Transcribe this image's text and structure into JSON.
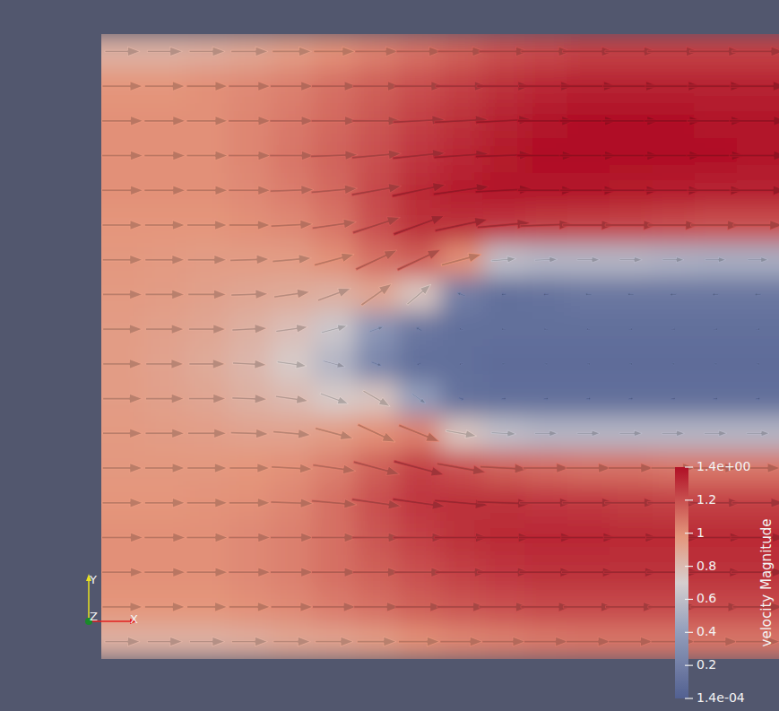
{
  "chart_data": {
    "type": "vector_field",
    "colorbar": {
      "title": "velocity Magnitude",
      "range": [
        0.00014,
        1.4
      ],
      "ticks": [
        {
          "value": 1.4,
          "label": "1.4e+00"
        },
        1.2,
        1,
        0.8,
        0.6,
        0.4,
        0.2,
        {
          "value": 0.00014,
          "label": "1.4e-04"
        }
      ]
    },
    "field": {
      "magnitude": [
        [
          0.85,
          0.85,
          0.87,
          0.9,
          0.95,
          1.0,
          1.05,
          1.1,
          1.15,
          1.2,
          1.22,
          1.25,
          1.25,
          1.25,
          1.25,
          1.25
        ],
        [
          0.98,
          0.98,
          1.0,
          1.02,
          1.05,
          1.1,
          1.15,
          1.2,
          1.25,
          1.3,
          1.33,
          1.35,
          1.35,
          1.35,
          1.35,
          1.35
        ],
        [
          1.0,
          1.0,
          1.0,
          1.03,
          1.07,
          1.12,
          1.18,
          1.25,
          1.3,
          1.35,
          1.38,
          1.4,
          1.4,
          1.4,
          1.38,
          1.38
        ],
        [
          1.0,
          1.0,
          1.0,
          1.03,
          1.08,
          1.14,
          1.2,
          1.28,
          1.33,
          1.37,
          1.4,
          1.4,
          1.4,
          1.4,
          1.4,
          1.38
        ],
        [
          1.0,
          1.0,
          1.0,
          1.02,
          1.06,
          1.12,
          1.22,
          1.32,
          1.36,
          1.38,
          1.38,
          1.38,
          1.37,
          1.36,
          1.35,
          1.35
        ],
        [
          0.98,
          0.98,
          0.98,
          1.0,
          1.02,
          1.08,
          1.2,
          1.3,
          1.3,
          1.28,
          1.26,
          1.25,
          1.24,
          1.22,
          1.2,
          1.2
        ],
        [
          0.97,
          0.96,
          0.95,
          0.95,
          0.95,
          1.0,
          1.1,
          1.15,
          1.0,
          0.6,
          0.55,
          0.55,
          0.55,
          0.52,
          0.5,
          0.5
        ],
        [
          0.96,
          0.95,
          0.93,
          0.9,
          0.88,
          0.85,
          0.9,
          0.75,
          0.2,
          0.1,
          0.12,
          0.15,
          0.15,
          0.15,
          0.15,
          0.15
        ],
        [
          0.95,
          0.93,
          0.9,
          0.85,
          0.78,
          0.65,
          0.35,
          0.15,
          0.1,
          0.1,
          0.1,
          0.1,
          0.1,
          0.1,
          0.1,
          0.1
        ],
        [
          0.95,
          0.92,
          0.88,
          0.82,
          0.72,
          0.55,
          0.25,
          0.1,
          0.1,
          0.08,
          0.08,
          0.08,
          0.08,
          0.08,
          0.08,
          0.08
        ],
        [
          0.95,
          0.93,
          0.9,
          0.85,
          0.8,
          0.72,
          0.75,
          0.4,
          0.12,
          0.1,
          0.1,
          0.1,
          0.1,
          0.1,
          0.1,
          0.1
        ],
        [
          0.96,
          0.95,
          0.94,
          0.92,
          0.92,
          0.95,
          1.0,
          1.05,
          0.75,
          0.6,
          0.55,
          0.55,
          0.55,
          0.55,
          0.55,
          0.55
        ],
        [
          0.97,
          0.97,
          0.97,
          0.98,
          1.0,
          1.05,
          1.15,
          1.25,
          1.2,
          1.15,
          1.12,
          1.1,
          1.1,
          1.08,
          1.08,
          1.08
        ],
        [
          0.98,
          0.98,
          0.99,
          1.0,
          1.03,
          1.1,
          1.2,
          1.28,
          1.3,
          1.3,
          1.28,
          1.27,
          1.26,
          1.25,
          1.25,
          1.25
        ],
        [
          1.0,
          1.0,
          1.0,
          1.02,
          1.05,
          1.1,
          1.18,
          1.25,
          1.3,
          1.32,
          1.33,
          1.33,
          1.32,
          1.32,
          1.32,
          1.32
        ],
        [
          1.0,
          1.0,
          1.0,
          1.02,
          1.05,
          1.1,
          1.15,
          1.2,
          1.25,
          1.28,
          1.3,
          1.3,
          1.3,
          1.3,
          1.3,
          1.3
        ],
        [
          0.98,
          0.98,
          0.98,
          1.0,
          1.02,
          1.06,
          1.1,
          1.15,
          1.18,
          1.2,
          1.22,
          1.22,
          1.22,
          1.22,
          1.22,
          1.22
        ],
        [
          0.85,
          0.85,
          0.85,
          0.87,
          0.9,
          0.92,
          0.95,
          1.0,
          1.03,
          1.05,
          1.07,
          1.08,
          1.08,
          1.08,
          1.08,
          1.08
        ]
      ],
      "angle": [
        [
          0,
          0,
          0,
          0,
          0,
          0,
          0,
          0,
          0,
          0,
          0,
          0,
          0,
          0,
          0,
          0
        ],
        [
          0,
          0,
          0,
          0,
          0,
          0,
          0,
          0,
          0,
          0,
          0,
          0,
          0,
          0,
          0,
          0
        ],
        [
          0,
          0,
          0,
          0,
          0,
          0,
          0,
          3,
          3,
          3,
          0,
          0,
          0,
          0,
          0,
          0
        ],
        [
          0,
          0,
          0,
          0,
          0,
          2,
          5,
          6,
          4,
          2,
          0,
          0,
          0,
          0,
          0,
          0
        ],
        [
          0,
          0,
          0,
          0,
          2,
          5,
          10,
          12,
          8,
          3,
          0,
          0,
          0,
          0,
          0,
          0
        ],
        [
          0,
          0,
          0,
          0,
          3,
          8,
          18,
          20,
          12,
          5,
          2,
          0,
          0,
          0,
          0,
          0
        ],
        [
          0,
          0,
          0,
          2,
          5,
          15,
          25,
          25,
          15,
          5,
          2,
          0,
          0,
          0,
          0,
          0
        ],
        [
          0,
          0,
          0,
          2,
          8,
          20,
          35,
          40,
          160,
          180,
          180,
          175,
          175,
          180,
          180,
          180
        ],
        [
          0,
          0,
          0,
          3,
          8,
          15,
          20,
          150,
          170,
          180,
          180,
          180,
          0,
          0,
          0,
          0
        ],
        [
          0,
          0,
          0,
          -3,
          -8,
          -15,
          -20,
          200,
          190,
          180,
          0,
          0,
          0,
          0,
          0,
          0
        ],
        [
          0,
          0,
          0,
          -2,
          -8,
          -20,
          -30,
          -35,
          -20,
          0,
          0,
          0,
          0,
          0,
          0,
          0
        ],
        [
          0,
          0,
          0,
          -2,
          -5,
          -15,
          -25,
          -22,
          -10,
          -3,
          0,
          0,
          0,
          0,
          0,
          0
        ],
        [
          0,
          0,
          0,
          0,
          -3,
          -8,
          -15,
          -15,
          -10,
          -3,
          0,
          0,
          0,
          0,
          0,
          0
        ],
        [
          0,
          0,
          0,
          0,
          -2,
          -5,
          -8,
          -8,
          -5,
          -2,
          0,
          0,
          0,
          0,
          0,
          0
        ],
        [
          0,
          0,
          0,
          0,
          0,
          0,
          0,
          0,
          0,
          0,
          0,
          0,
          0,
          0,
          0,
          0
        ],
        [
          0,
          0,
          0,
          0,
          0,
          0,
          0,
          0,
          0,
          0,
          0,
          0,
          0,
          0,
          0,
          0
        ],
        [
          0,
          0,
          0,
          0,
          0,
          0,
          0,
          0,
          0,
          0,
          0,
          0,
          0,
          0,
          0,
          0
        ],
        [
          0,
          0,
          0,
          0,
          0,
          0,
          0,
          0,
          0,
          0,
          0,
          0,
          0,
          0,
          0,
          0
        ]
      ]
    },
    "axes_triad": [
      "X",
      "Y",
      "Z"
    ]
  }
}
